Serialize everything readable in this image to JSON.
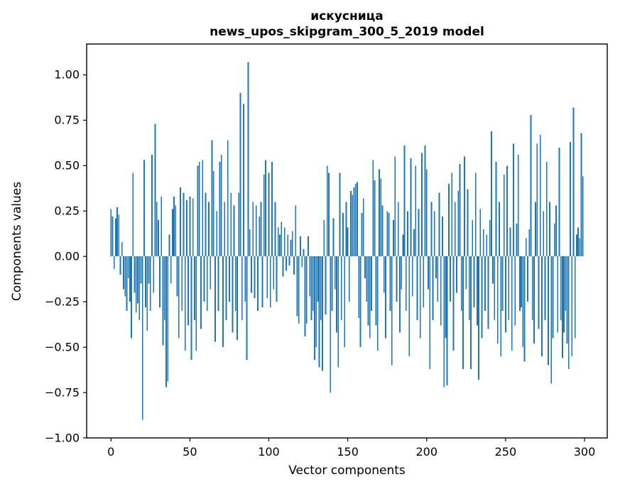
{
  "figure": {
    "title_lines": [
      "искусница",
      "news_upos_skipgram_300_5_2019 model"
    ],
    "xlabel": "Vector components",
    "ylabel": "Components values"
  },
  "colors": {
    "bar": "#1f77b4",
    "spine": "#000000",
    "text": "#000000",
    "background": "#ffffff"
  },
  "chart_data": {
    "type": "bar",
    "title": "искусница",
    "subtitle": "news_upos_skipgram_300_5_2019 model",
    "xlabel": "Vector components",
    "ylabel": "Components values",
    "n_components": 300,
    "xlim": [
      -15.4,
      314.4
    ],
    "ylim": [
      -1.0,
      1.17
    ],
    "xticks": [
      0,
      50,
      100,
      150,
      200,
      250,
      300
    ],
    "yticks": [
      1.0,
      0.75,
      0.5,
      0.25,
      0.0,
      -0.25,
      -0.5,
      -0.75,
      -1.0
    ],
    "grid": false,
    "legend_position": "none",
    "bar_color": "#1f77b4",
    "bar_width": 0.8,
    "values": [
      0.26,
      0.22,
      -0.07,
      0.21,
      0.27,
      0.23,
      -0.1,
      0.08,
      -0.18,
      -0.22,
      -0.3,
      -0.12,
      -0.25,
      -0.45,
      0.46,
      -0.2,
      -0.31,
      -0.26,
      -0.35,
      -0.15,
      -0.9,
      0.53,
      -0.28,
      -0.41,
      -0.15,
      -0.3,
      0.56,
      -0.2,
      0.73,
      0.3,
      0.2,
      -0.28,
      0.33,
      -0.49,
      -0.35,
      -0.72,
      -0.69,
      0.12,
      -0.15,
      0.26,
      0.33,
      0.28,
      -0.22,
      -0.45,
      0.38,
      -0.3,
      0.35,
      -0.52,
      0.31,
      -0.38,
      0.33,
      -0.57,
      0.32,
      -0.35,
      -0.52,
      0.5,
      0.52,
      -0.4,
      0.53,
      -0.25,
      0.35,
      -0.3,
      0.3,
      -0.18,
      0.64,
      0.47,
      -0.47,
      0.25,
      -0.3,
      0.52,
      0.56,
      -0.5,
      0.3,
      -0.35,
      0.64,
      -0.25,
      0.35,
      -0.42,
      0.28,
      -0.3,
      -0.46,
      0.35,
      0.9,
      -0.35,
      0.84,
      -0.25,
      -0.57,
      1.07,
      0.15,
      -0.2,
      0.3,
      -0.23,
      0.28,
      -0.3,
      0.22,
      0.3,
      -0.28,
      0.45,
      0.53,
      -0.23,
      0.46,
      -0.28,
      0.52,
      -0.18,
      0.3,
      -0.25,
      0.16,
      0.12,
      0.19,
      -0.11,
      0.16,
      -0.08,
      0.12,
      -0.05,
      0.09,
      0.14,
      -0.1,
      0.28,
      -0.33,
      -0.37,
      0.11,
      -0.06,
      0.04,
      -0.44,
      -0.37,
      0.11,
      -0.22,
      -0.35,
      -0.3,
      -0.57,
      -0.5,
      -0.25,
      -0.61,
      -0.35,
      -0.63,
      0.2,
      -0.32,
      0.5,
      0.46,
      -0.75,
      -0.3,
      0.21,
      -0.18,
      -0.42,
      -0.61,
      0.46,
      -0.35,
      0.24,
      -0.5,
      0.3,
      0.16,
      -0.25,
      0.36,
      0.34,
      0.38,
      0.4,
      0.41,
      -0.34,
      -0.5,
      0.24,
      0.32,
      -0.12,
      -0.25,
      -0.38,
      -0.45,
      -0.3,
      0.53,
      0.42,
      -0.38,
      -0.52,
      0.48,
      0.43,
      0.28,
      -0.2,
      -0.45,
      0.25,
      0.24,
      -0.3,
      -0.6,
      0.2,
      0.55,
      -0.25,
      0.3,
      -0.42,
      -0.18,
      0.12,
      0.61,
      -0.3,
      0.25,
      -0.55,
      0.54,
      -0.22,
      0.15,
      0.5,
      -0.35,
      0.26,
      -0.45,
      0.57,
      -0.28,
      0.61,
      0.48,
      -0.18,
      -0.62,
      0.3,
      -0.35,
      0.25,
      -0.12,
      -0.25,
      0.35,
      -0.38,
      0.22,
      -0.72,
      -0.45,
      -0.71,
      0.4,
      -0.25,
      0.46,
      -0.52,
      0.3,
      -0.2,
      0.36,
      0.51,
      -0.3,
      -0.62,
      0.55,
      -0.18,
      0.37,
      -0.35,
      -0.62,
      0.2,
      -0.28,
      0.46,
      -0.38,
      -0.68,
      0.26,
      -0.45,
      0.15,
      -0.3,
      0.12,
      -0.4,
      0.2,
      0.69,
      -0.15,
      -0.35,
      0.52,
      -0.48,
      0.3,
      -0.55,
      -0.3,
      0.45,
      -0.42,
      0.5,
      -0.35,
      0.16,
      -0.52,
      0.62,
      -0.38,
      0.18,
      0.56,
      -0.3,
      -0.28,
      -0.5,
      -0.58,
      0.1,
      -0.25,
      0.15,
      0.78,
      -0.35,
      -0.48,
      0.3,
      0.62,
      -0.4,
      0.67,
      -0.55,
      0.25,
      -0.35,
      0.52,
      -0.6,
      0.3,
      -0.7,
      -0.45,
      0.18,
      0.28,
      -0.42,
      0.6,
      -0.35,
      -0.56,
      -0.42,
      -0.3,
      -0.48,
      -0.62,
      0.63,
      -0.55,
      0.82,
      -0.45,
      0.12,
      0.16,
      0.1,
      0.68,
      0.44
    ]
  }
}
